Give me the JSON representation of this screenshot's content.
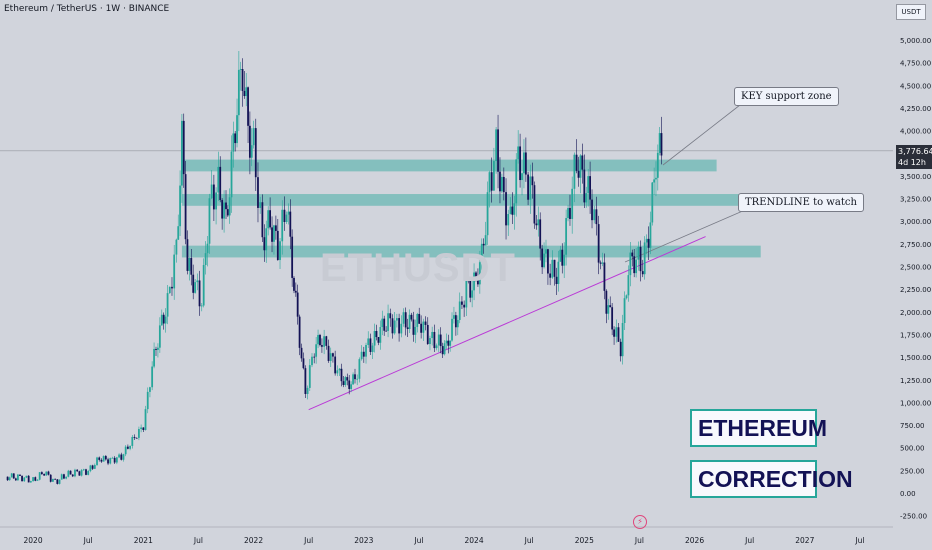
{
  "header": {
    "title": "Ethereum / TetherUS · 1W · BINANCE"
  },
  "unit_label": "USDT",
  "watermark": "ETHUSDT",
  "price_tag": {
    "price": "3,776.64",
    "countdown": "4d 12h"
  },
  "callouts": {
    "support": "KEY support zone",
    "trendline": "TRENDLINE to watch"
  },
  "boxes": {
    "top": "ETHEREUM",
    "bottom": "CORRECTION"
  },
  "chart_data": {
    "type": "candlestick",
    "title": "Ethereum / TetherUS · 1W · BINANCE",
    "y_ticks": [
      -250,
      0,
      250,
      500,
      750,
      1000,
      1250,
      1500,
      1750,
      2000,
      2250,
      2500,
      2750,
      3000,
      3250,
      3500,
      3750,
      4000,
      4250,
      4500,
      4750,
      5000
    ],
    "y_tick_labels": [
      "-250.00",
      "0.00",
      "250.00",
      "500.00",
      "750.00",
      "1,000.00",
      "1,250.00",
      "1,500.00",
      "1,750.00",
      "2,000.00",
      "2,250.00",
      "2,500.00",
      "2,750.00",
      "3,000.00",
      "3,250.00",
      "3,500.00",
      "3,750.00",
      "4,000.00",
      "4,250.00",
      "4,500.00",
      "4,750.00",
      "5,000.00"
    ],
    "ylim": [
      -400,
      5200
    ],
    "x_labels": [
      "2020",
      "Jul",
      "2021",
      "Jul",
      "2022",
      "Jul",
      "2023",
      "Jul",
      "2024",
      "Jul",
      "2025",
      "Jul",
      "2026",
      "Jul",
      "2027",
      "Jul"
    ],
    "xlim": [
      2019.7,
      2027.8
    ],
    "current_price": 3776.64,
    "support_zones": [
      {
        "low": 3550,
        "high": 3680,
        "x_end": 2026.2
      },
      {
        "low": 3170,
        "high": 3300,
        "x_end": 2026.52
      },
      {
        "low": 2600,
        "high": 2730,
        "x_end": 2026.6
      }
    ],
    "trendline": {
      "x1": 2022.5,
      "y1": 920,
      "x2": 2025.6,
      "y2": 2600,
      "extend_to_x": 2026.1,
      "extend_to_y": 2830
    },
    "series": [
      {
        "values": [
          [
            2019.75,
            180
          ],
          [
            2019.9,
            170
          ],
          [
            2020.0,
            135
          ],
          [
            2020.1,
            230
          ],
          [
            2020.2,
            120
          ],
          [
            2020.3,
            200
          ],
          [
            2020.4,
            230
          ],
          [
            2020.5,
            240
          ],
          [
            2020.6,
            380
          ],
          [
            2020.7,
            360
          ],
          [
            2020.8,
            400
          ],
          [
            2020.9,
            580
          ],
          [
            2021.0,
            740
          ],
          [
            2021.08,
            1400
          ],
          [
            2021.15,
            1800
          ],
          [
            2021.22,
            2100
          ],
          [
            2021.3,
            2700
          ],
          [
            2021.35,
            3900
          ],
          [
            2021.4,
            2500
          ],
          [
            2021.47,
            2300
          ],
          [
            2021.53,
            2100
          ],
          [
            2021.6,
            3200
          ],
          [
            2021.68,
            3400
          ],
          [
            2021.75,
            3000
          ],
          [
            2021.8,
            3600
          ],
          [
            2021.85,
            4300
          ],
          [
            2021.9,
            4700
          ],
          [
            2021.95,
            4000
          ],
          [
            2022.0,
            3800
          ],
          [
            2022.08,
            2800
          ],
          [
            2022.15,
            3000
          ],
          [
            2022.22,
            2700
          ],
          [
            2022.3,
            3200
          ],
          [
            2022.35,
            2500
          ],
          [
            2022.4,
            1900
          ],
          [
            2022.47,
            1100
          ],
          [
            2022.55,
            1600
          ],
          [
            2022.62,
            1700
          ],
          [
            2022.7,
            1500
          ],
          [
            2022.78,
            1300
          ],
          [
            2022.85,
            1200
          ],
          [
            2022.92,
            1250
          ],
          [
            2023.0,
            1600
          ],
          [
            2023.08,
            1650
          ],
          [
            2023.15,
            1800
          ],
          [
            2023.22,
            1900
          ],
          [
            2023.3,
            1850
          ],
          [
            2023.38,
            1900
          ],
          [
            2023.45,
            1850
          ],
          [
            2023.52,
            1880
          ],
          [
            2023.6,
            1700
          ],
          [
            2023.68,
            1650
          ],
          [
            2023.75,
            1600
          ],
          [
            2023.8,
            1850
          ],
          [
            2023.87,
            2000
          ],
          [
            2023.93,
            2250
          ],
          [
            2024.0,
            2300
          ],
          [
            2024.07,
            2600
          ],
          [
            2024.14,
            3400
          ],
          [
            2024.2,
            3800
          ],
          [
            2024.27,
            3200
          ],
          [
            2024.33,
            3000
          ],
          [
            2024.4,
            3700
          ],
          [
            2024.47,
            3500
          ],
          [
            2024.53,
            3300
          ],
          [
            2024.6,
            2700
          ],
          [
            2024.67,
            2500
          ],
          [
            2024.73,
            2400
          ],
          [
            2024.8,
            2600
          ],
          [
            2024.87,
            3200
          ],
          [
            2024.93,
            3700
          ],
          [
            2025.0,
            3400
          ],
          [
            2025.07,
            3200
          ],
          [
            2025.13,
            2700
          ],
          [
            2025.2,
            2100
          ],
          [
            2025.27,
            1800
          ],
          [
            2025.33,
            1600
          ],
          [
            2025.4,
            2500
          ],
          [
            2025.47,
            2600
          ],
          [
            2025.53,
            2500
          ],
          [
            2025.6,
            3000
          ],
          [
            2025.65,
            3700
          ],
          [
            2025.7,
            3776.64
          ]
        ]
      }
    ]
  }
}
